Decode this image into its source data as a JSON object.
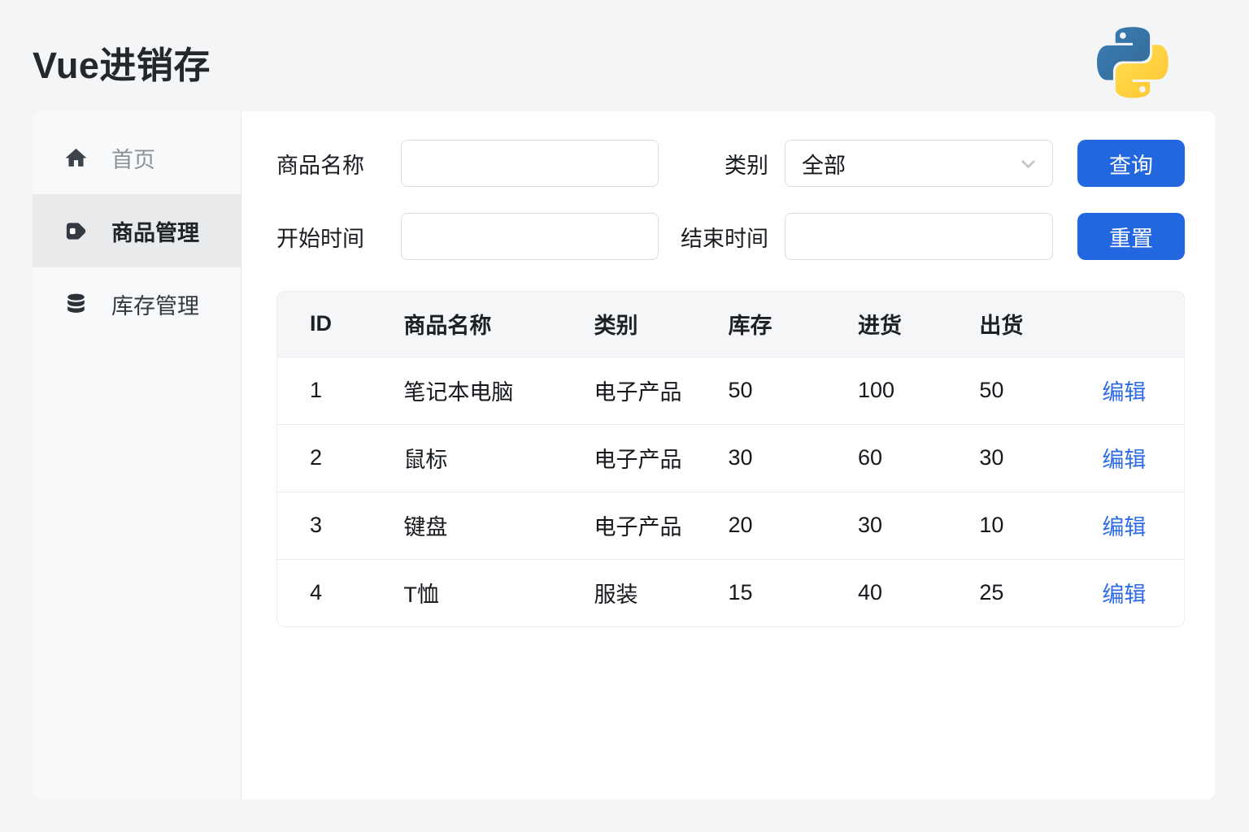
{
  "app": {
    "title": "Vue进销存"
  },
  "header": {
    "logo_icon": "python-logo"
  },
  "colors": {
    "primary_button": "#2267df",
    "link": "#2e6be6",
    "logo_blue": "#387EB8",
    "logo_blue_dark": "#366994",
    "logo_yellow": "#FFE052",
    "logo_yellow_dark": "#FFC331",
    "sidebar_active_bg": "#e9eaec"
  },
  "sidebar": {
    "items": [
      {
        "label": "首页",
        "icon": "home-icon",
        "active": false
      },
      {
        "label": "商品管理",
        "icon": "tag-icon",
        "active": true
      },
      {
        "label": "库存管理",
        "icon": "database-icon",
        "active": false
      }
    ]
  },
  "filters": {
    "product_name_label": "商品名称",
    "product_name_value": "",
    "category_label": "类别",
    "category_value": "全部",
    "start_time_label": "开始时间",
    "start_time_value": "",
    "end_time_label": "结束时间",
    "end_time_value": "",
    "query_button": "查询",
    "reset_button": "重置"
  },
  "table": {
    "columns": [
      "ID",
      "商品名称",
      "类别",
      "库存",
      "进货",
      "出货",
      ""
    ],
    "rows": [
      {
        "id": "1",
        "name": "笔记本电脑",
        "category": "电子产品",
        "stock": "50",
        "inbound": "100",
        "outbound": "50",
        "action": "编辑"
      },
      {
        "id": "2",
        "name": "鼠标",
        "category": "电子产品",
        "stock": "30",
        "inbound": "60",
        "outbound": "30",
        "action": "编辑"
      },
      {
        "id": "3",
        "name": "键盘",
        "category": "电子产品",
        "stock": "20",
        "inbound": "30",
        "outbound": "10",
        "action": "编辑"
      },
      {
        "id": "4",
        "name": "T恤",
        "category": "服装",
        "stock": "15",
        "inbound": "40",
        "outbound": "25",
        "action": "编辑"
      }
    ]
  }
}
